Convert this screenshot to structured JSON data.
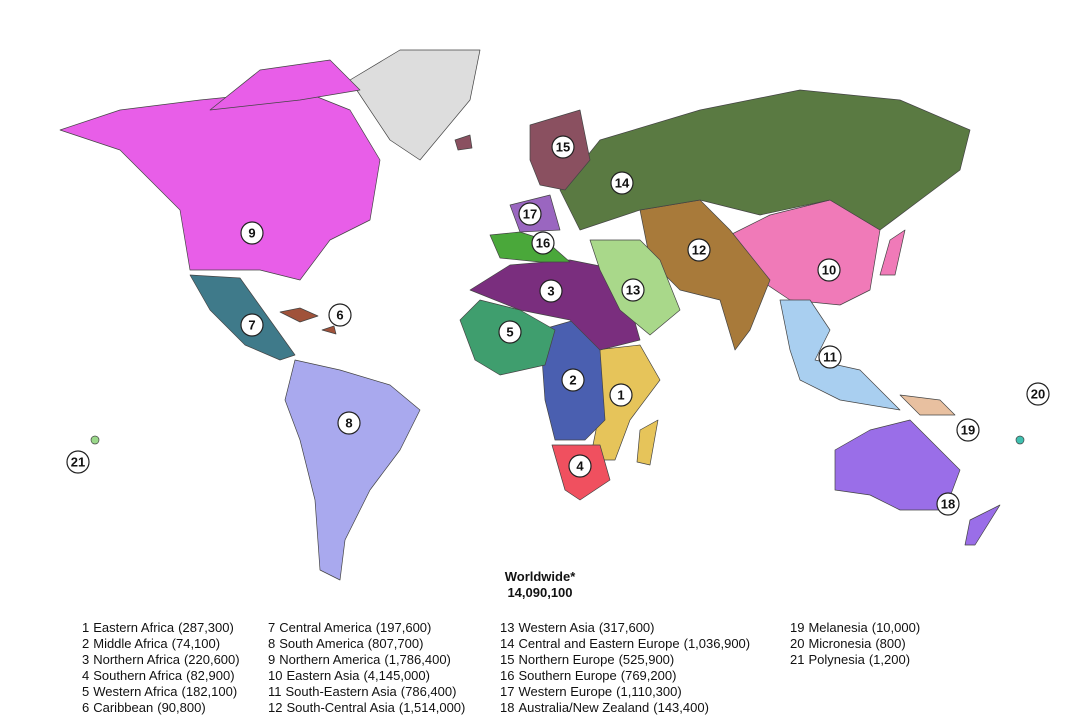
{
  "title": "Worldwide*",
  "total": "14,090,100",
  "regions": [
    {
      "id": 1,
      "name": "Eastern Africa",
      "count": "(287,300)",
      "color": "#e6c45a"
    },
    {
      "id": 2,
      "name": "Middle Africa",
      "count": "(74,100)",
      "color": "#4a5fb0"
    },
    {
      "id": 3,
      "name": "Northern Africa",
      "count": "(220,600)",
      "color": "#7a2e7e"
    },
    {
      "id": 4,
      "name": "Southern Africa",
      "count": "(82,900)",
      "color": "#f0505f"
    },
    {
      "id": 5,
      "name": "Western Africa",
      "count": "(182,100)",
      "color": "#3f9e6e"
    },
    {
      "id": 6,
      "name": "Caribbean",
      "count": "(90,800)",
      "color": "#a0523a"
    },
    {
      "id": 7,
      "name": "Central America",
      "count": "(197,600)",
      "color": "#3f7a8a"
    },
    {
      "id": 8,
      "name": "South America",
      "count": "(807,700)",
      "color": "#a9a9ee"
    },
    {
      "id": 9,
      "name": "Northern America",
      "count": "(1,786,400)",
      "color": "#e85ee8"
    },
    {
      "id": 10,
      "name": "Eastern Asia",
      "count": "(4,145,000)",
      "color": "#f07ab8"
    },
    {
      "id": 11,
      "name": "South-Eastern Asia",
      "count": "(786,400)",
      "color": "#a9cff0"
    },
    {
      "id": 12,
      "name": "South-Central Asia",
      "count": "(1,514,000)",
      "color": "#a87a3a"
    },
    {
      "id": 13,
      "name": "Western Asia",
      "count": "(317,600)",
      "color": "#a9d88a"
    },
    {
      "id": 14,
      "name": "Central and Eastern Europe",
      "count": "(1,036,900)",
      "color": "#5a7a42"
    },
    {
      "id": 15,
      "name": "Northern Europe",
      "count": "(525,900)",
      "color": "#8a5060"
    },
    {
      "id": 16,
      "name": "Southern Europe",
      "count": "(769,200)",
      "color": "#4aa83a"
    },
    {
      "id": 17,
      "name": "Western Europe",
      "count": "(1,110,300)",
      "color": "#9a66c0"
    },
    {
      "id": 18,
      "name": "Australia/New Zealand",
      "count": "(143,400)",
      "color": "#9a6ee8"
    },
    {
      "id": 19,
      "name": "Melanesia",
      "count": "(10,000)",
      "color": "#e8c0a0"
    },
    {
      "id": 20,
      "name": "Micronesia",
      "count": "(800)",
      "color": "#40c0b0"
    },
    {
      "id": 21,
      "name": "Polynesia",
      "count": "(1,200)",
      "color": "#9ad88a"
    }
  ]
}
